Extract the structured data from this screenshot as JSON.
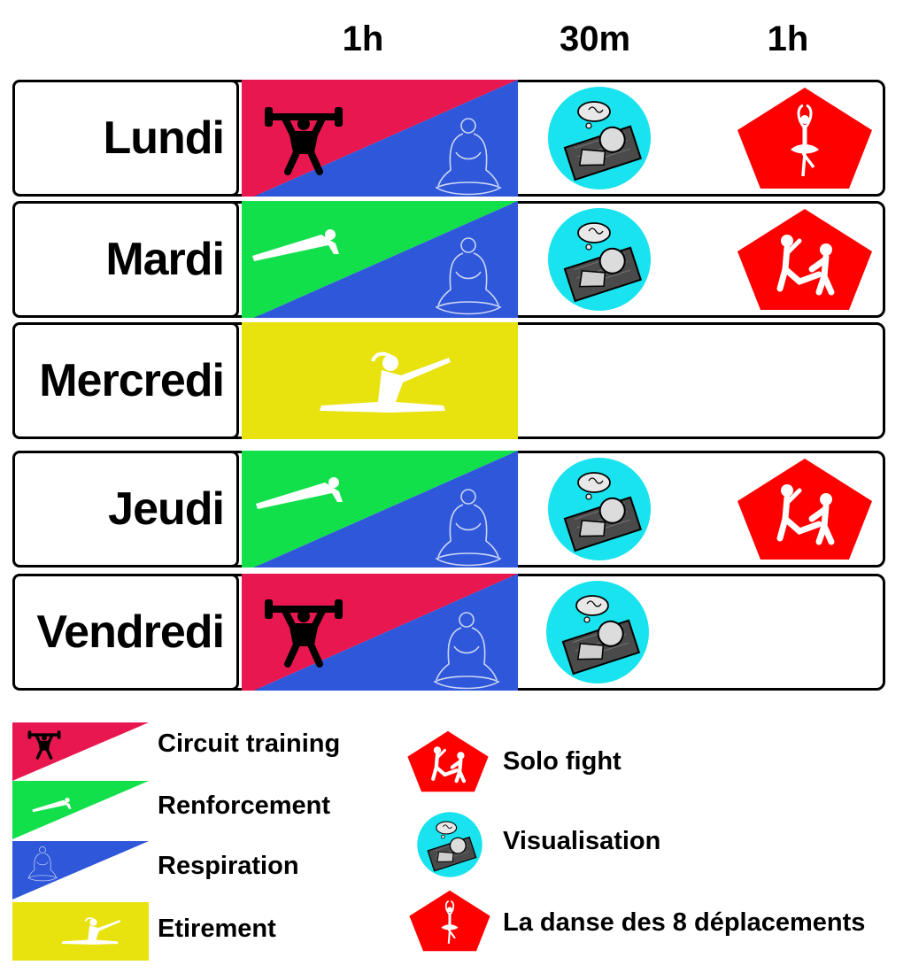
{
  "headers": {
    "slot1": "1h",
    "slot2": "30m",
    "slot3": "1h"
  },
  "colors": {
    "circuit": "#e8174f",
    "renforcement": "#12e04b",
    "respiration": "#2f57d9",
    "etirement": "#e8e20e",
    "visualisation": "#19e3ee",
    "pentagon": "#ff0000"
  },
  "days": [
    {
      "name": "Lundi",
      "slot1": "circuit+respiration",
      "slot2": "visualisation",
      "slot3": "danse"
    },
    {
      "name": "Mardi",
      "slot1": "renforcement+respiration",
      "slot2": "visualisation",
      "slot3": "solo-fight"
    },
    {
      "name": "Mercredi",
      "slot1": "etirement",
      "slot2": "",
      "slot3": ""
    },
    {
      "name": "Jeudi",
      "slot1": "renforcement+respiration",
      "slot2": "visualisation",
      "slot3": "solo-fight"
    },
    {
      "name": "Vendredi",
      "slot1": "circuit+respiration",
      "slot2": "visualisation",
      "slot3": ""
    }
  ],
  "legend": {
    "circuit": "Circuit training",
    "renforcement": "Renforcement",
    "respiration": "Respiration",
    "etirement": "Etirement",
    "solo_fight": "Solo fight",
    "visualisation": "Visualisation",
    "danse": "La danse des 8 déplacements"
  }
}
